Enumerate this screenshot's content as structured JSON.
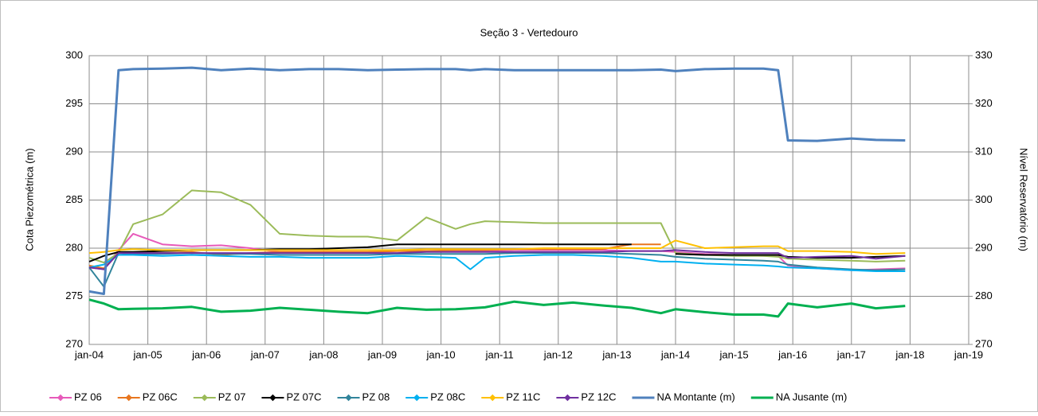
{
  "chart_data": {
    "type": "line",
    "title": "Seção 3 - Vertedouro",
    "y_label": "Cota Piezométrica (m)",
    "y2_label": "Nível Reservatório (m)",
    "grid": true,
    "legend": "bottom",
    "x": [
      "2004-01",
      "2004-04",
      "2004-07",
      "2004-10",
      "2005-04",
      "2005-10",
      "2006-04",
      "2006-10",
      "2007-04",
      "2007-10",
      "2008-04",
      "2008-10",
      "2009-04",
      "2009-10",
      "2010-04",
      "2010-07",
      "2010-10",
      "2011-04",
      "2011-10",
      "2012-04",
      "2012-10",
      "2013-04",
      "2013-10",
      "2014-01",
      "2014-07",
      "2015-01",
      "2015-07",
      "2015-10",
      "2015-12",
      "2016-06",
      "2017-01",
      "2017-06",
      "2017-12"
    ],
    "xlim": [
      "2004-01",
      "2019-01"
    ],
    "xticks": [
      {
        "value": "2004-01",
        "label": "jan-04"
      },
      {
        "value": "2005-01",
        "label": "jan-05"
      },
      {
        "value": "2006-01",
        "label": "jan-06"
      },
      {
        "value": "2007-01",
        "label": "jan-07"
      },
      {
        "value": "2008-01",
        "label": "jan-08"
      },
      {
        "value": "2009-01",
        "label": "jan-09"
      },
      {
        "value": "2010-01",
        "label": "jan-10"
      },
      {
        "value": "2011-01",
        "label": "jan-11"
      },
      {
        "value": "2012-01",
        "label": "jan-12"
      },
      {
        "value": "2013-01",
        "label": "jan-13"
      },
      {
        "value": "2014-01",
        "label": "jan-14"
      },
      {
        "value": "2015-01",
        "label": "jan-15"
      },
      {
        "value": "2016-01",
        "label": "jan-16"
      },
      {
        "value": "2017-01",
        "label": "jan-17"
      },
      {
        "value": "2018-01",
        "label": "jan-18"
      },
      {
        "value": "2019-01",
        "label": "jan-19"
      }
    ],
    "ylim": [
      270,
      300
    ],
    "yticks": [
      270,
      275,
      280,
      285,
      290,
      295,
      300
    ],
    "y2lim": [
      270,
      330
    ],
    "y2ticks": [
      270,
      280,
      290,
      300,
      310,
      320,
      330
    ],
    "series": [
      {
        "name": "PZ 06",
        "color": "#e75aba",
        "values": [
          278,
          277.8,
          279.8,
          281.5,
          280.4,
          280.2,
          280.3,
          280,
          279.6,
          279.6,
          279.6,
          279.6,
          279.7,
          279.7,
          279.7,
          279.7,
          279.7,
          279.8,
          279.8,
          279.8,
          279.8,
          279.7,
          279.7,
          279.6,
          279.4,
          279.3,
          279.2,
          279.2,
          278.2,
          277.9,
          277.7,
          277.8,
          277.9
        ]
      },
      {
        "name": "PZ 06C",
        "color": "#e8761f",
        "values": [
          278.2,
          277.9,
          279.5,
          279.5,
          279.5,
          279.6,
          279.3,
          279.5,
          279.6,
          279.6,
          279.6,
          279.6,
          279.7,
          279.7,
          279.8,
          279.8,
          279.8,
          279.9,
          279.9,
          279.9,
          279.9,
          280.4,
          280.4,
          null,
          null,
          null,
          null,
          null,
          null,
          null,
          null,
          null,
          null
        ]
      },
      {
        "name": "PZ 07",
        "color": "#9bbb59",
        "values": [
          279,
          278.5,
          279.5,
          282.5,
          283.5,
          286,
          285.8,
          284.5,
          281.5,
          281.3,
          281.2,
          281.2,
          280.8,
          283.2,
          282,
          282.5,
          282.8,
          282.7,
          282.6,
          282.6,
          282.6,
          282.6,
          282.6,
          279.5,
          279.3,
          279.2,
          279.2,
          279.1,
          278.9,
          278.8,
          278.7,
          278.6,
          278.7
        ]
      },
      {
        "name": "PZ 07C",
        "color": "#000000",
        "values": [
          278.6,
          279.2,
          279.6,
          279.6,
          279.7,
          279.8,
          279.8,
          279.8,
          279.9,
          279.9,
          280,
          280.1,
          280.4,
          280.4,
          280.4,
          280.4,
          280.4,
          280.4,
          280.4,
          280.4,
          280.4,
          280.4,
          null,
          279.4,
          279.3,
          279.3,
          279.3,
          279.3,
          279.1,
          279,
          279,
          279.1,
          279.2
        ]
      },
      {
        "name": "PZ 08",
        "color": "#31849b",
        "values": [
          278,
          276,
          279.5,
          279.4,
          279.4,
          279.5,
          279.4,
          279.4,
          279.3,
          279.3,
          279.3,
          279.3,
          279.4,
          279.4,
          279.4,
          279.4,
          279.4,
          279.5,
          279.5,
          279.5,
          279.5,
          279.4,
          279.3,
          279.1,
          278.9,
          278.8,
          278.7,
          278.6,
          278.3,
          278,
          277.8,
          277.7,
          277.8
        ]
      },
      {
        "name": "PZ 08C",
        "color": "#00b0f0",
        "values": [
          278,
          278.3,
          279.3,
          279.3,
          279.2,
          279.3,
          279.2,
          279.1,
          279.1,
          279,
          279,
          279,
          279.2,
          279.1,
          279,
          277.8,
          279,
          279.2,
          279.3,
          279.3,
          279.2,
          279,
          278.6,
          278.6,
          278.4,
          278.3,
          278.2,
          278.1,
          278,
          277.9,
          277.7,
          277.6,
          277.6
        ]
      },
      {
        "name": "PZ 11C",
        "color": "#ffc000",
        "values": [
          279.5,
          279.6,
          279.8,
          279.9,
          279.8,
          279.8,
          279.8,
          279.8,
          279.8,
          279.8,
          279.8,
          279.8,
          279.8,
          279.9,
          279.9,
          279.9,
          279.9,
          279.9,
          280,
          280,
          280,
          280,
          280,
          280.8,
          280,
          280.1,
          280.2,
          280.2,
          279.7,
          279.7,
          279.6,
          279.4,
          279.5
        ]
      },
      {
        "name": "PZ 12C",
        "color": "#7030a0",
        "values": [
          278,
          277.8,
          279.5,
          279.5,
          279.5,
          279.5,
          279.5,
          279.5,
          279.5,
          279.5,
          279.5,
          279.5,
          279.5,
          279.6,
          279.6,
          279.6,
          279.6,
          279.6,
          279.6,
          279.6,
          279.6,
          279.7,
          279.7,
          279.8,
          279.6,
          279.5,
          279.5,
          279.5,
          279,
          279.1,
          279.2,
          278.9,
          279.2
        ]
      },
      {
        "name": "NA Montante (m)",
        "color": "#4f81bd",
        "axis": "y2",
        "values": [
          281,
          280.5,
          327,
          327.2,
          327.3,
          327.5,
          327,
          327.3,
          327,
          327.2,
          327.2,
          327,
          327.1,
          327.2,
          327.2,
          327,
          327.2,
          327,
          327,
          327,
          327,
          327,
          327.1,
          326.8,
          327.2,
          327.3,
          327.3,
          327,
          312.4,
          312.3,
          312.8,
          312.5,
          312.4
        ]
      },
      {
        "name": "NA Jusante (m)",
        "color": "#00b050",
        "axis": "y2",
        "values": [
          279.3,
          278.5,
          277.3,
          277.4,
          277.5,
          277.8,
          276.8,
          277,
          277.6,
          277.2,
          276.8,
          276.5,
          277.6,
          277.2,
          277.3,
          277.5,
          277.7,
          278.9,
          278.2,
          278.7,
          278.1,
          277.6,
          276.5,
          277.3,
          276.7,
          276.2,
          276.2,
          275.8,
          278.5,
          277.7,
          278.5,
          277.5,
          278
        ]
      }
    ]
  }
}
